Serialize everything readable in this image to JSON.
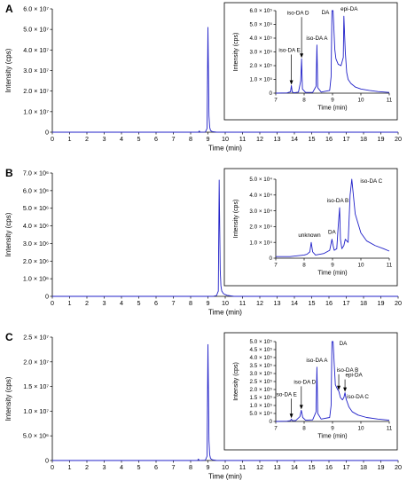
{
  "chart_data": [
    {
      "type": "line",
      "panel": "A",
      "xlabel": "Time (min)",
      "ylabel": "Intensity (cps)",
      "xlim": [
        0,
        20
      ],
      "ylim": [
        0,
        60000000
      ],
      "x_ticks": [
        "0",
        "1",
        "2",
        "3",
        "4",
        "5",
        "6",
        "7",
        "8",
        "9",
        "10",
        "11",
        "12",
        "13",
        "14",
        "15",
        "16",
        "17",
        "18",
        "19",
        "20"
      ],
      "y_ticks": [
        "0",
        "1.0 × 10⁷",
        "2.0 × 10⁷",
        "3.0 × 10⁷",
        "4.0 × 10⁷",
        "5.0 × 10⁷",
        "6.0 × 10⁷"
      ],
      "grid": false,
      "series": [
        {
          "x": [
            0,
            8.45,
            8.5,
            8.55,
            8.6,
            8.85,
            8.95,
            9.0,
            9.03,
            9.06,
            9.1,
            9.15,
            9.25,
            9.5,
            10,
            20
          ],
          "y": [
            0,
            0,
            600000,
            0,
            0,
            100000,
            1800000,
            51000000,
            30000000,
            8000000,
            2500000,
            800000,
            300000,
            0,
            0,
            0
          ]
        }
      ],
      "inset": {
        "xlabel": "Time (min)",
        "ylabel": "Intensity (cps)",
        "xlim": [
          7,
          11
        ],
        "ylim": [
          0,
          600000
        ],
        "x_ticks": [
          "7",
          "8",
          "9",
          "10",
          "11"
        ],
        "y_ticks": [
          "0",
          "1.0 × 10⁵",
          "2.0 × 10⁵",
          "3.0 × 10⁵",
          "4.0 × 10⁵",
          "5.0 × 10⁵",
          "6.0 × 10⁵"
        ],
        "series": [
          {
            "x": [
              7.0,
              7.4,
              7.52,
              7.55,
              7.58,
              7.65,
              7.8,
              7.88,
              7.91,
              7.94,
              8.05,
              8.3,
              8.42,
              8.45,
              8.48,
              8.6,
              8.9,
              8.95,
              8.98,
              9.02,
              9.08,
              9.12,
              9.2,
              9.3,
              9.38,
              9.4,
              9.45,
              9.5,
              9.55,
              9.65,
              9.8,
              10.0,
              10.3,
              10.6,
              11.0
            ],
            "y": [
              0,
              2000,
              10000,
              55000,
              8000,
              3000,
              8000,
              90000,
              250000,
              30000,
              5000,
              5000,
              50000,
              350000,
              40000,
              8000,
              20000,
              120000,
              800000,
              800000,
              320000,
              250000,
              210000,
              200000,
              260000,
              560000,
              300000,
              150000,
              100000,
              70000,
              45000,
              30000,
              20000,
              12000,
              5000
            ]
          }
        ],
        "annotations": [
          "iso-DA E",
          "iso-DA D",
          "iso-DA A",
          "DA",
          "epi-DA"
        ]
      }
    },
    {
      "type": "line",
      "panel": "B",
      "xlabel": "Time (min)",
      "ylabel": "Intensity (cps)",
      "xlim": [
        0,
        20
      ],
      "ylim": [
        0,
        7000000
      ],
      "x_ticks": [
        "0",
        "1",
        "2",
        "3",
        "4",
        "5",
        "6",
        "7",
        "8",
        "9",
        "10",
        "11",
        "12",
        "13",
        "14",
        "15",
        "16",
        "17",
        "18",
        "19",
        "20"
      ],
      "y_ticks": [
        "0",
        "1.0 × 10⁶",
        "2.0 × 10⁶",
        "3.0 × 10⁶",
        "4.0 × 10⁶",
        "5.0 × 10⁶",
        "6.0 × 10⁶",
        "7.0 × 10⁶"
      ],
      "grid": false,
      "series": [
        {
          "x": [
            0,
            9.3,
            9.5,
            9.6,
            9.65,
            9.68,
            9.71,
            9.75,
            9.8,
            9.9,
            10.1,
            10.5,
            20
          ],
          "y": [
            0,
            0,
            50000,
            300000,
            6600000,
            4000000,
            1500000,
            600000,
            300000,
            150000,
            60000,
            0,
            0
          ]
        }
      ],
      "inset": {
        "xlabel": "Time (min)",
        "ylabel": "Intensity (cps)",
        "xlim": [
          7,
          11
        ],
        "ylim": [
          0,
          50000
        ],
        "x_ticks": [
          "7",
          "8",
          "9",
          "10",
          "11"
        ],
        "y_ticks": [
          "0",
          "1.0 × 10⁴",
          "2.0 × 10⁴",
          "3.0 × 10⁴",
          "4.0 × 10⁴",
          "5.0 × 10⁴"
        ],
        "series": [
          {
            "x": [
              7.0,
              7.5,
              8.0,
              8.1,
              8.2,
              8.25,
              8.3,
              8.4,
              8.7,
              8.9,
              8.98,
              9.02,
              9.06,
              9.15,
              9.2,
              9.25,
              9.28,
              9.33,
              9.4,
              9.45,
              9.55,
              9.62,
              9.68,
              9.8,
              10.0,
              10.2,
              10.5,
              10.8,
              11.0
            ],
            "y": [
              1000,
              1000,
              2000,
              2500,
              4000,
              10000,
              4000,
              2000,
              3000,
              5000,
              12000,
              8000,
              5000,
              6000,
              20000,
              32000,
              12000,
              6000,
              8000,
              12000,
              10000,
              40000,
              60000,
              28000,
              16000,
              11000,
              8000,
              6000,
              4500
            ]
          }
        ],
        "annotations": [
          "unknown",
          "DA",
          "iso-DA B",
          "iso-DA C"
        ]
      }
    },
    {
      "type": "line",
      "panel": "C",
      "xlabel": "Time (min)",
      "ylabel": "Intensity (cps)",
      "xlim": [
        0,
        20
      ],
      "ylim": [
        0,
        25000000
      ],
      "x_ticks": [
        "0",
        "1",
        "2",
        "3",
        "4",
        "5",
        "6",
        "7",
        "8",
        "9",
        "10",
        "11",
        "12",
        "13",
        "14",
        "15",
        "16",
        "17",
        "18",
        "19",
        "20"
      ],
      "y_ticks": [
        "0",
        "5.0 × 10⁶",
        "1.0 × 10⁷",
        "1.5 × 10⁷",
        "2.0 × 10⁷",
        "2.5 × 10⁷"
      ],
      "grid": false,
      "series": [
        {
          "x": [
            0,
            8.4,
            8.45,
            8.5,
            8.55,
            8.85,
            8.95,
            9.0,
            9.03,
            9.06,
            9.1,
            9.15,
            9.25,
            9.5,
            10,
            20
          ],
          "y": [
            0,
            0,
            300000,
            0,
            0,
            60000,
            900000,
            23500000,
            14000000,
            4000000,
            1200000,
            400000,
            150000,
            0,
            0,
            0
          ]
        }
      ],
      "inset": {
        "xlabel": "Time (min)",
        "ylabel": "Intensity (cps)",
        "xlim": [
          7,
          11
        ],
        "ylim": [
          0,
          500000
        ],
        "x_ticks": [
          "7",
          "8",
          "9",
          "10",
          "11"
        ],
        "y_ticks": [
          "0",
          "5.0 × 10⁴",
          "1.0 × 10⁵",
          "1.5 × 10⁵",
          "2.0 × 10⁵",
          "2.5 × 10⁵",
          "3.0 × 10⁵",
          "3.5 × 10⁵",
          "4.0 × 10⁵",
          "4.5 × 10⁵",
          "5.0 × 10⁵"
        ],
        "series": [
          {
            "x": [
              7.0,
              7.4,
              7.52,
              7.55,
              7.58,
              7.7,
              7.85,
              7.9,
              7.95,
              8.05,
              8.3,
              8.42,
              8.45,
              8.48,
              8.6,
              8.9,
              8.95,
              8.98,
              9.02,
              9.06,
              9.1,
              9.18,
              9.22,
              9.28,
              9.35,
              9.4,
              9.44,
              9.48,
              9.52,
              9.58,
              9.7,
              9.9,
              10.2,
              10.6,
              11.0
            ],
            "y": [
              0,
              2000,
              5000,
              15000,
              5000,
              5000,
              30000,
              70000,
              25000,
              8000,
              10000,
              60000,
              340000,
              50000,
              15000,
              25000,
              100000,
              700000,
              700000,
              360000,
              230000,
              200000,
              190000,
              150000,
              135000,
              150000,
              180000,
              140000,
              120000,
              90000,
              60000,
              40000,
              25000,
              15000,
              8000
            ]
          }
        ],
        "annotations": [
          "iso-DA E",
          "iso-DA D",
          "iso-DA A",
          "DA",
          "iso-DA B",
          "epi-DA",
          "iso-DA C"
        ]
      }
    }
  ]
}
